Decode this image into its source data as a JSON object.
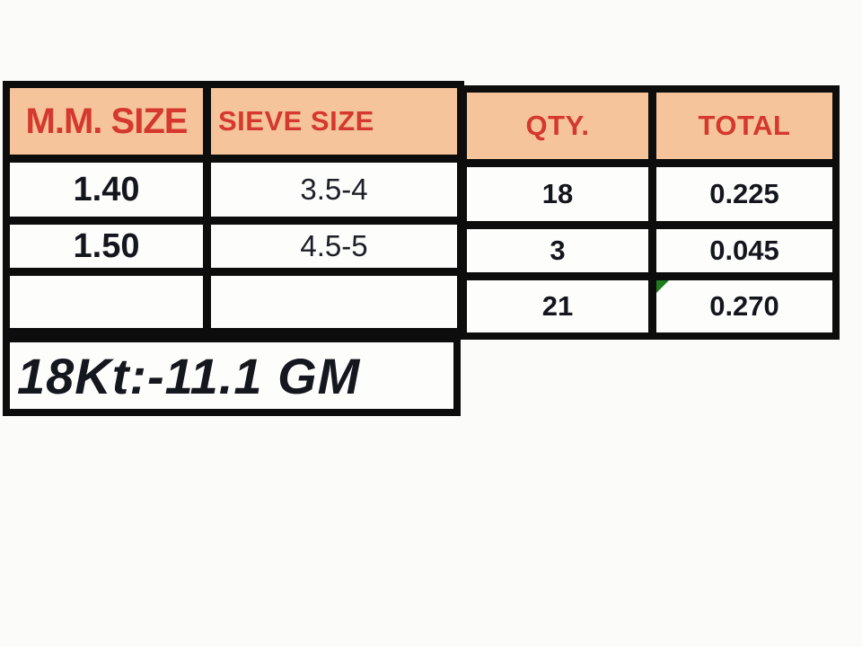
{
  "colors": {
    "header_fill": "#F6C49A",
    "header_text": "#D4382E",
    "grid_border": "#0D0D0D",
    "value_text": "#14161D",
    "flag_green": "#1E7B1E",
    "background": "#FBFBFA"
  },
  "sieve_table": {
    "columns": [
      {
        "key": "mm_size",
        "label": "M.M. SIZE"
      },
      {
        "key": "sieve_size",
        "label": "SIEVE SIZE"
      },
      {
        "key": "qty",
        "label": "QTY."
      },
      {
        "key": "total",
        "label": "TOTAL"
      }
    ],
    "rows": [
      {
        "mm_size": "1.40",
        "sieve_size": "3.5-4",
        "qty": "18",
        "total": "0.225"
      },
      {
        "mm_size": "1.50",
        "sieve_size": "4.5-5",
        "qty": "3",
        "total": "0.045"
      },
      {
        "mm_size": "",
        "sieve_size": "",
        "qty": "21",
        "total": "0.270"
      }
    ],
    "totals_row": {
      "qty": "21",
      "total": "0.270"
    }
  },
  "note": {
    "text": "18Kt:-11.1 GM"
  }
}
